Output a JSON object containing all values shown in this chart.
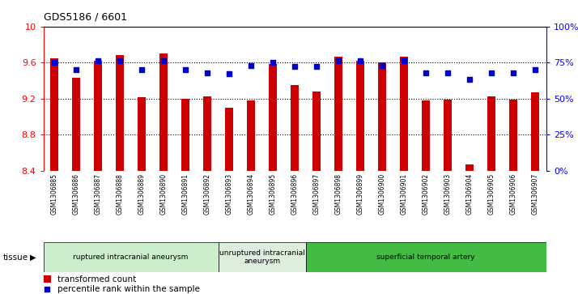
{
  "title": "GDS5186 / 6601",
  "samples": [
    "GSM1306885",
    "GSM1306886",
    "GSM1306887",
    "GSM1306888",
    "GSM1306889",
    "GSM1306890",
    "GSM1306891",
    "GSM1306892",
    "GSM1306893",
    "GSM1306894",
    "GSM1306895",
    "GSM1306896",
    "GSM1306897",
    "GSM1306898",
    "GSM1306899",
    "GSM1306900",
    "GSM1306901",
    "GSM1306902",
    "GSM1306903",
    "GSM1306904",
    "GSM1306905",
    "GSM1306906",
    "GSM1306907"
  ],
  "bar_values": [
    9.65,
    9.43,
    9.62,
    9.68,
    9.21,
    9.7,
    9.2,
    9.22,
    9.1,
    9.18,
    9.58,
    9.35,
    9.28,
    9.66,
    9.62,
    9.6,
    9.66,
    9.18,
    9.19,
    8.47,
    9.22,
    9.19,
    9.27
  ],
  "percentile_values": [
    75,
    70,
    76,
    76,
    70,
    76,
    70,
    68,
    67,
    73,
    75,
    72,
    72,
    76,
    76,
    73,
    76,
    68,
    68,
    63,
    68,
    68,
    70
  ],
  "bar_color": "#cc0000",
  "percentile_color": "#0000cc",
  "ymin": 8.4,
  "ymax": 10.0,
  "yticks_left": [
    8.4,
    8.8,
    9.2,
    9.6,
    10.0
  ],
  "ytick_labels_left": [
    "8.4",
    "8.8",
    "9.2",
    "9.6",
    "10"
  ],
  "yticks_right": [
    0,
    25,
    50,
    75,
    100
  ],
  "ytick_labels_right": [
    "0%",
    "25%",
    "50%",
    "75%",
    "100%"
  ],
  "hlines": [
    8.8,
    9.2,
    9.6
  ],
  "groups": [
    {
      "label": "ruptured intracranial aneurysm",
      "start": 0,
      "end": 8,
      "color": "#cceecc"
    },
    {
      "label": "unruptured intracranial\naneurysm",
      "start": 8,
      "end": 12,
      "color": "#ddeedd"
    },
    {
      "label": "superficial temporal artery",
      "start": 12,
      "end": 23,
      "color": "#44bb44"
    }
  ],
  "tissue_label": "tissue",
  "legend_bar_label": "transformed count",
  "legend_percentile_label": "percentile rank within the sample",
  "fig_bg": "#ffffff",
  "plot_bg": "#ffffff",
  "xtick_area_bg": "#d0d0d0",
  "bar_width": 0.35
}
